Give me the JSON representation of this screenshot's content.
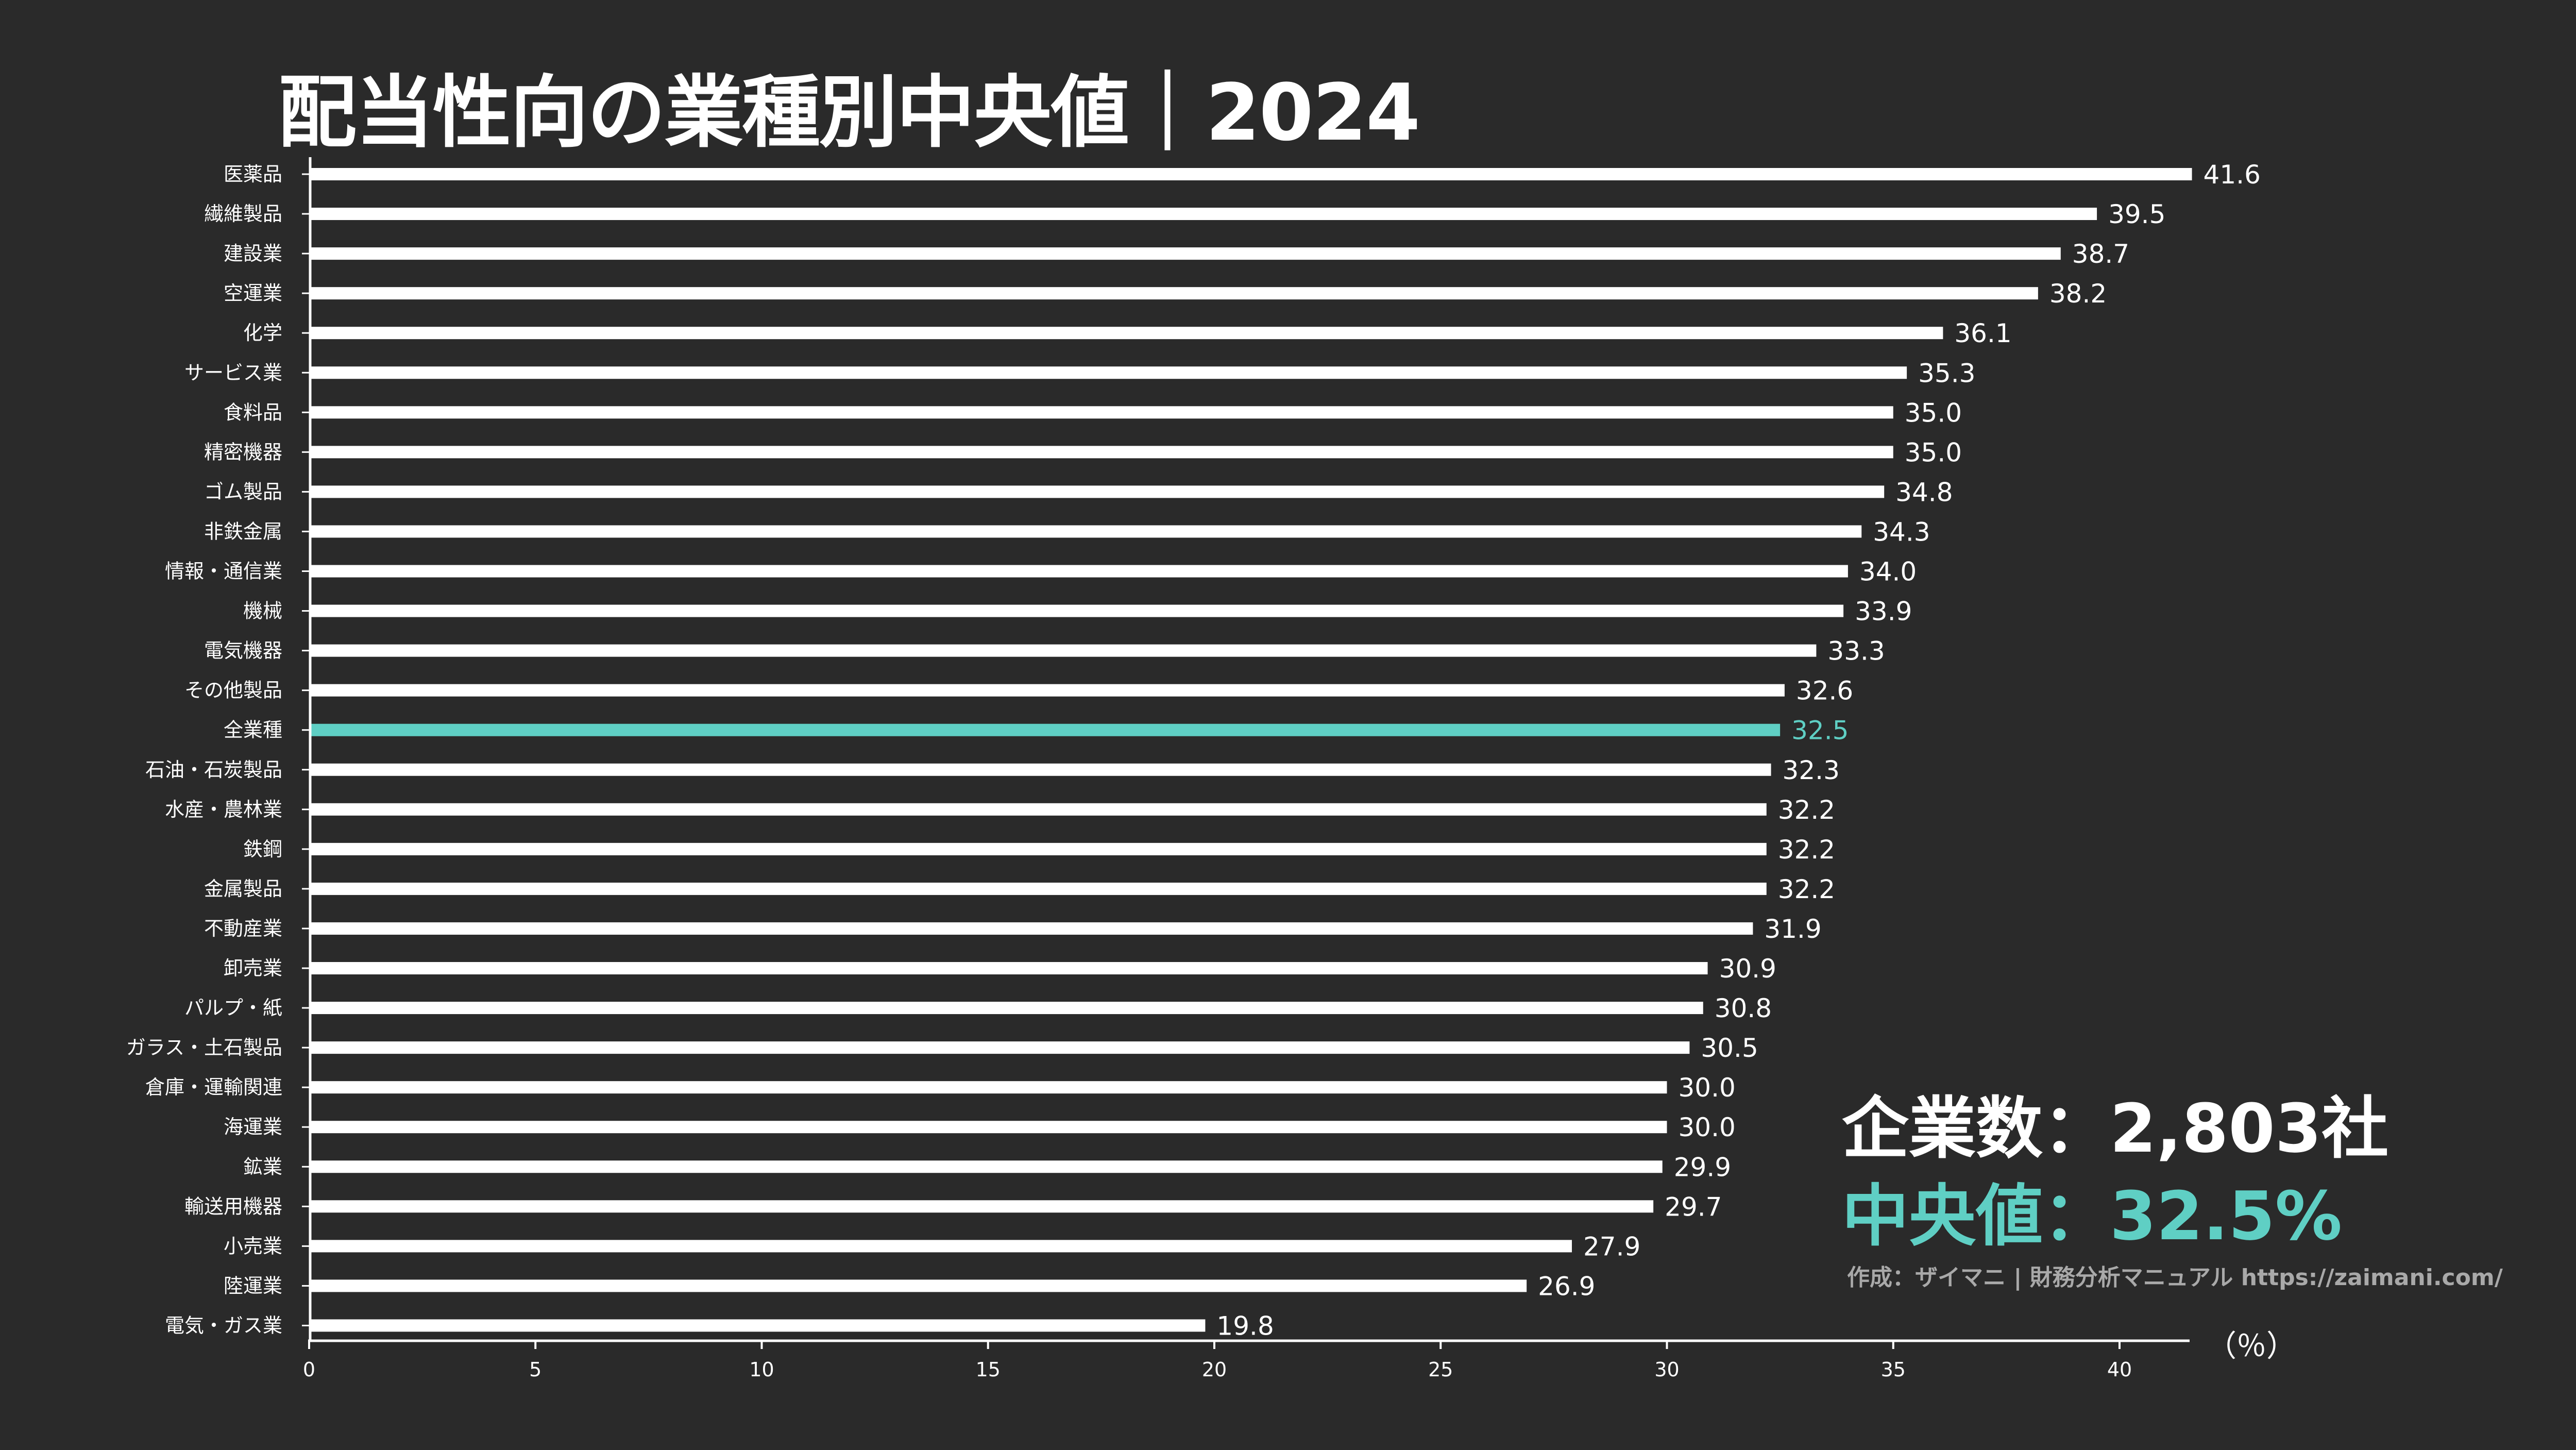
{
  "title": "配当性向の業種別中央値｜2024",
  "stats": {
    "count_text": "企業数：2,803社",
    "median_text": "中央値：32.5%"
  },
  "credit": "作成：ザイマニ | 財務分析マニュアル https://zaimani.com/",
  "unit": "（％）",
  "colors": {
    "background": "#2a2a2a",
    "bar": "#ffffff",
    "highlight": "#5fcfc4",
    "credit": "#a9a9a9"
  },
  "chart_data": {
    "type": "bar",
    "orientation": "horizontal",
    "categories": [
      "医薬品",
      "繊維製品",
      "建設業",
      "空運業",
      "化学",
      "サービス業",
      "食料品",
      "精密機器",
      "ゴム製品",
      "非鉄金属",
      "情報・通信業",
      "機械",
      "電気機器",
      "その他製品",
      "全業種",
      "石油・石炭製品",
      "水産・農林業",
      "鉄鋼",
      "金属製品",
      "不動産業",
      "卸売業",
      "パルプ・紙",
      "ガラス・土石製品",
      "倉庫・運輸関連",
      "海運業",
      "鉱業",
      "輸送用機器",
      "小売業",
      "陸運業",
      "電気・ガス業"
    ],
    "values": [
      41.6,
      39.5,
      38.7,
      38.2,
      36.1,
      35.3,
      35.0,
      35.0,
      34.8,
      34.3,
      34.0,
      33.9,
      33.3,
      32.6,
      32.5,
      32.3,
      32.2,
      32.2,
      32.2,
      31.9,
      30.9,
      30.8,
      30.5,
      30.0,
      30.0,
      29.9,
      29.7,
      27.9,
      26.9,
      19.8
    ],
    "value_labels": [
      "41.6",
      "39.5",
      "38.7",
      "38.2",
      "36.1",
      "35.3",
      "35.0",
      "35.0",
      "34.8",
      "34.3",
      "34.0",
      "33.9",
      "33.3",
      "32.6",
      "32.5",
      "32.3",
      "32.2",
      "32.2",
      "32.2",
      "31.9",
      "30.9",
      "30.8",
      "30.5",
      "30.0",
      "30.0",
      "29.9",
      "29.7",
      "27.9",
      "26.9",
      "19.8"
    ],
    "highlight_category": "全業種",
    "xlim": [
      0,
      42
    ],
    "xticks": [
      0,
      5,
      10,
      15,
      20,
      25,
      30,
      35,
      40
    ],
    "xlabel": "",
    "ylabel": "",
    "grid": false
  }
}
